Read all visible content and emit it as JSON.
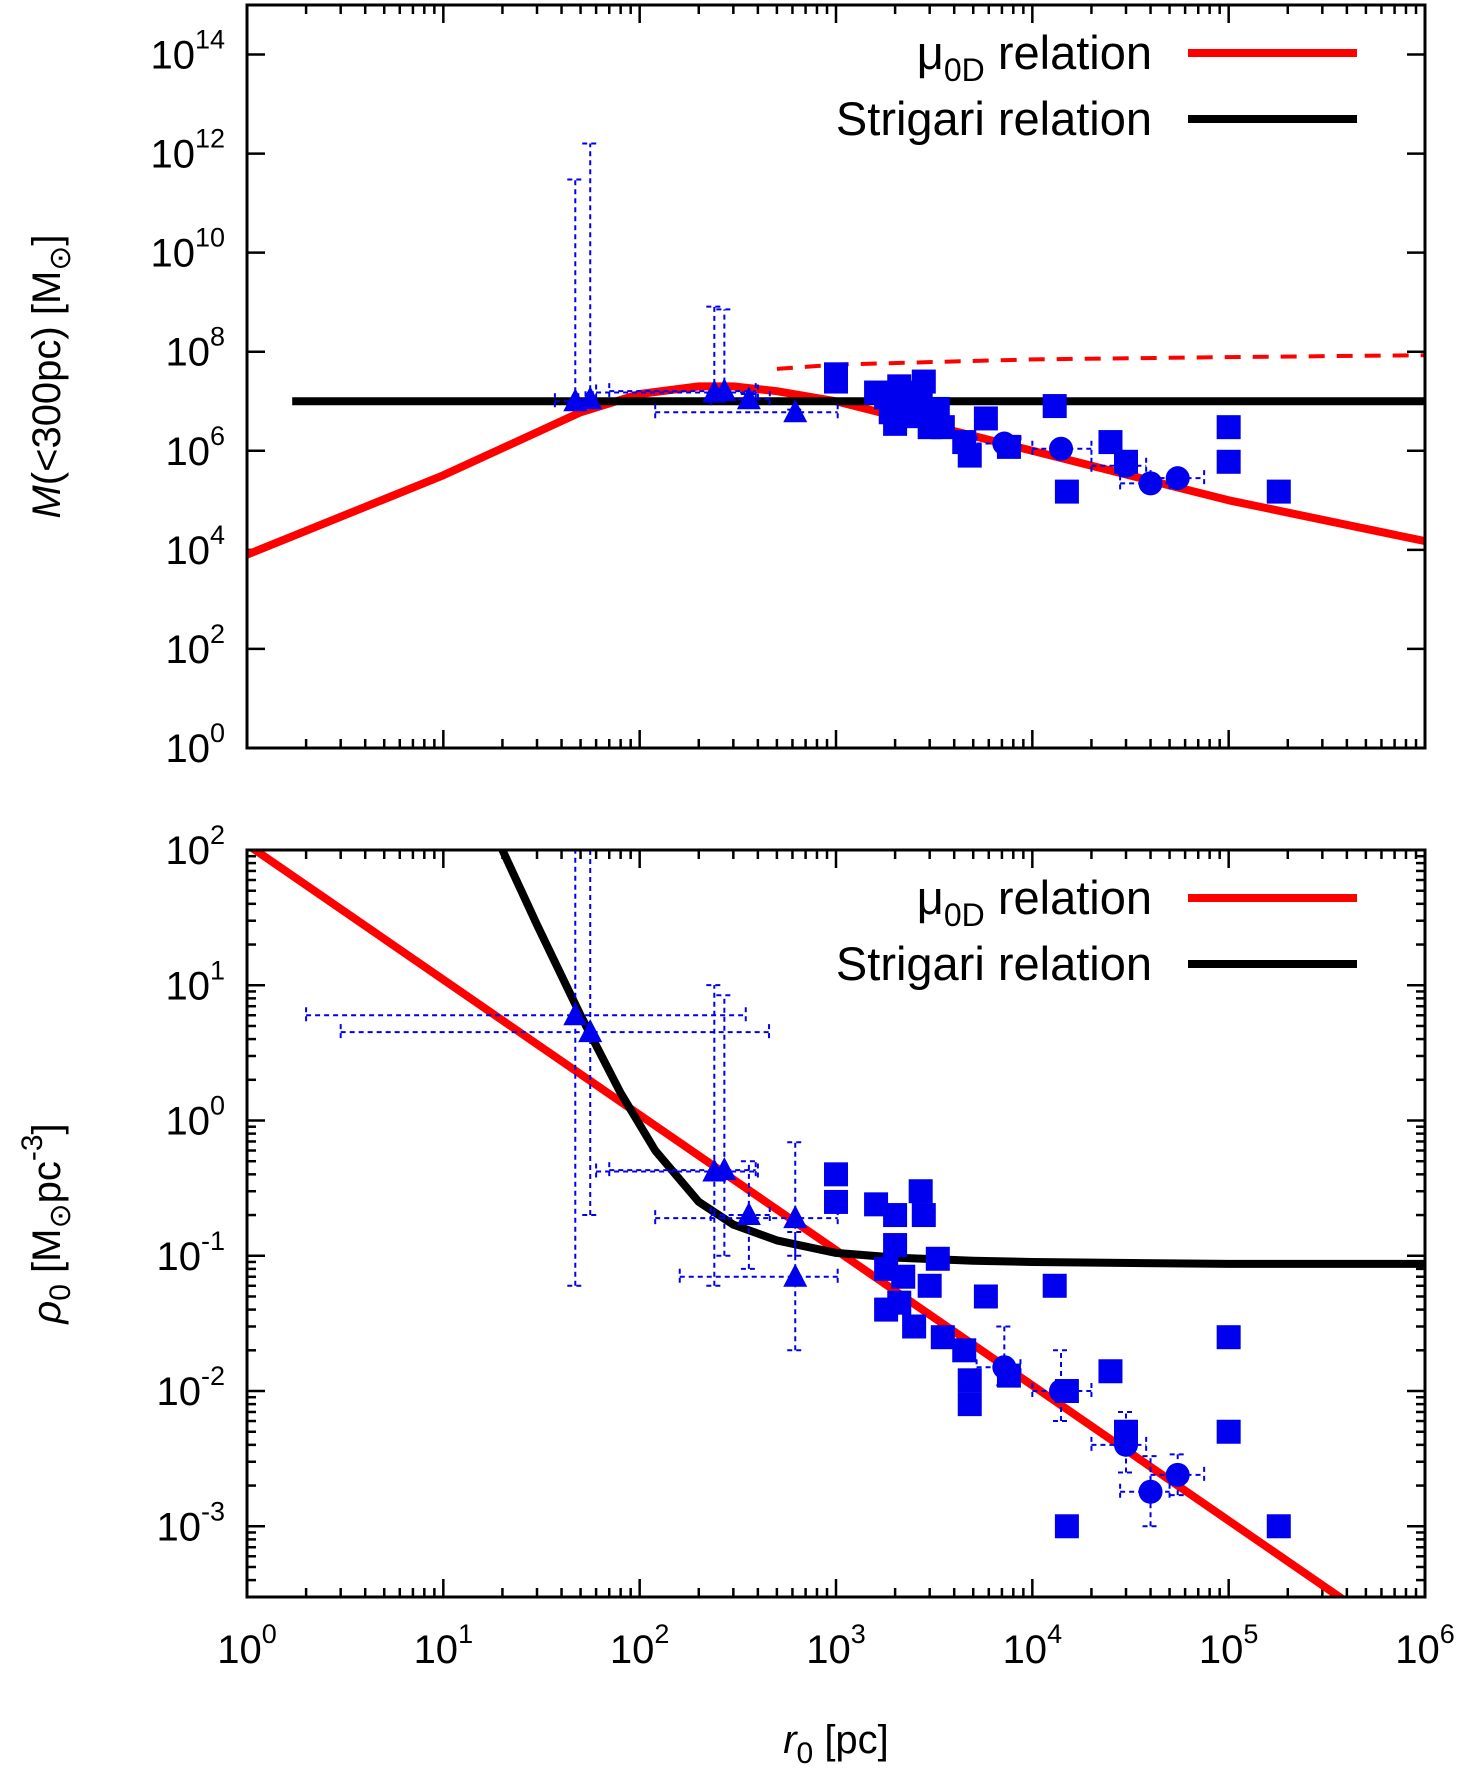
{
  "chart_data": [
    {
      "type": "scatter",
      "panel": "top",
      "ylabel": {
        "main": "M(<300pc) [M",
        "sub": "⊙",
        "close": "]"
      },
      "xscale": "log",
      "yscale": "log",
      "xlim": [
        1,
        1000000
      ],
      "ylim": [
        1,
        1000000000000000.0
      ],
      "grid": false,
      "legend": {
        "placement": "top-right",
        "entries": [
          {
            "label_main": "μ",
            "label_sub": "0D",
            "label_rest": " relation",
            "color": "#ff0000"
          },
          {
            "label_main": "Strigari relation",
            "label_sub": "",
            "label_rest": "",
            "color": "#000000"
          }
        ]
      },
      "y_ticks": [
        {
          "base": "10",
          "exp": "0",
          "value": 1
        },
        {
          "base": "10",
          "exp": "2",
          "value": 100
        },
        {
          "base": "10",
          "exp": "4",
          "value": 10000
        },
        {
          "base": "10",
          "exp": "6",
          "value": 1000000
        },
        {
          "base": "10",
          "exp": "8",
          "value": 100000000
        },
        {
          "base": "10",
          "exp": "10",
          "value": 10000000000
        },
        {
          "base": "10",
          "exp": "12",
          "value": 1000000000000
        },
        {
          "base": "10",
          "exp": "14",
          "value": 100000000000000
        }
      ],
      "series": [
        {
          "name": "μ0D relation",
          "kind": "curve",
          "color": "#ff0000",
          "x": [
            1,
            10,
            50,
            100,
            200,
            300,
            500,
            1000,
            2000,
            5000,
            10000,
            100000,
            1000000
          ],
          "y": [
            8000,
            320000,
            6000000,
            14000000,
            20000000,
            20000000,
            16000000,
            10000000,
            5000000,
            2000000,
            1000000,
            100000,
            15000
          ]
        },
        {
          "name": "μ0D relation (dashed)",
          "kind": "curve",
          "color": "#ff0000",
          "dashed": true,
          "x": [
            500,
            1000,
            10000,
            100000,
            1000000
          ],
          "y": [
            45000000,
            55000000,
            70000000,
            78000000,
            85000000
          ]
        },
        {
          "name": "Strigari relation",
          "kind": "curve",
          "color": "#000000",
          "x": [
            1.7,
            1000000
          ],
          "y": [
            10000000,
            10000000
          ]
        },
        {
          "name": "triangles",
          "kind": "points",
          "marker": "triangle",
          "color": "#0000ee",
          "x": [
            47,
            56,
            240,
            270,
            360,
            620
          ],
          "y": [
            10000000,
            11000000,
            15000000,
            16000000,
            11000000,
            6000000
          ],
          "xerr": [
            [
              10,
              1.7
            ],
            [
              3,
              1.7
            ],
            [
              180,
              160
            ],
            [
              200,
              120
            ],
            [
              130,
              100
            ],
            [
              500,
              400
            ]
          ],
          "yerr": [
            [
              100,
              300000000000.0
            ],
            [
              50,
              1600000000000.0
            ],
            [
              250000,
              800000000
            ],
            [
              300000,
              700000000
            ],
            [
              2500000,
              3000000
            ],
            [
              1500000,
              800000
            ]
          ]
        },
        {
          "name": "squares",
          "kind": "points",
          "marker": "square",
          "color": "#0000ee",
          "x": [
            1000,
            1000,
            1600,
            1800,
            1900,
            2000,
            2100,
            2200,
            2500,
            2700,
            2800,
            3000,
            3300,
            3500,
            4500,
            4800,
            5800,
            7600,
            13000,
            15000,
            25000,
            30000,
            100000,
            100000,
            180000
          ],
          "y": [
            35000000,
            25000000,
            15000000,
            12000000,
            6000000,
            3500000,
            20000000,
            8000000,
            5000000,
            15000000,
            25000000,
            3000000,
            7000000,
            3000000,
            1500000,
            800000,
            4500000,
            1200000,
            8000000,
            150000,
            1500000,
            600000,
            3000000,
            600000,
            150000
          ]
        },
        {
          "name": "circles",
          "kind": "points",
          "marker": "circle",
          "color": "#0000ee",
          "x": [
            7200,
            14000,
            30000,
            40000,
            55000
          ],
          "y": [
            1400000,
            1100000,
            500000,
            220000,
            280000
          ],
          "xerr": [
            [
              2000,
              1500
            ],
            [
              4000,
              6000
            ],
            [
              10000,
              8000
            ],
            [
              12000,
              10000
            ],
            [
              15000,
              20000
            ]
          ]
        }
      ]
    },
    {
      "type": "scatter",
      "panel": "bottom",
      "xlabel": {
        "main": "r",
        "sub": "0",
        "rest": " [pc]"
      },
      "ylabel": {
        "main": "ρ",
        "sub": "0",
        "rest": " [M",
        "sub2": "⊙",
        "mid": "pc",
        "sup": "-3",
        "close": "]"
      },
      "xscale": "log",
      "yscale": "log",
      "xlim": [
        1,
        1000000
      ],
      "ylim": [
        0.0003,
        100
      ],
      "grid": false,
      "legend": {
        "placement": "top-right",
        "entries": [
          {
            "label_main": "μ",
            "label_sub": "0D",
            "label_rest": " relation",
            "color": "#ff0000"
          },
          {
            "label_main": "Strigari relation",
            "label_sub": "",
            "label_rest": "",
            "color": "#000000"
          }
        ]
      },
      "x_ticks": [
        {
          "base": "10",
          "exp": "0",
          "value": 1
        },
        {
          "base": "10",
          "exp": "1",
          "value": 10
        },
        {
          "base": "10",
          "exp": "2",
          "value": 100
        },
        {
          "base": "10",
          "exp": "3",
          "value": 1000
        },
        {
          "base": "10",
          "exp": "4",
          "value": 10000
        },
        {
          "base": "10",
          "exp": "5",
          "value": 100000
        },
        {
          "base": "10",
          "exp": "6",
          "value": 1000000
        }
      ],
      "y_ticks": [
        {
          "base": "10",
          "exp": "-3",
          "value": 0.001
        },
        {
          "base": "10",
          "exp": "-2",
          "value": 0.01
        },
        {
          "base": "10",
          "exp": "-1",
          "value": 0.1
        },
        {
          "base": "10",
          "exp": "0",
          "value": 1
        },
        {
          "base": "10",
          "exp": "1",
          "value": 10
        },
        {
          "base": "10",
          "exp": "2",
          "value": 100
        }
      ],
      "series": [
        {
          "name": "μ0D relation",
          "kind": "curve",
          "color": "#ff0000",
          "x": [
            1,
            1000000
          ],
          "y": [
            110,
            0.00011
          ]
        },
        {
          "name": "Strigari relation",
          "kind": "curve",
          "color": "#000000",
          "x": [
            20,
            30,
            50,
            80,
            120,
            200,
            300,
            500,
            1000,
            2000,
            5000,
            10000,
            100000,
            1000000
          ],
          "y": [
            100,
            28,
            6,
            1.6,
            0.6,
            0.25,
            0.17,
            0.13,
            0.105,
            0.097,
            0.092,
            0.09,
            0.087,
            0.087
          ]
        },
        {
          "name": "triangles",
          "kind": "points",
          "marker": "triangle",
          "color": "#0000ee",
          "x": [
            47,
            56,
            240,
            270,
            360,
            620,
            620
          ],
          "y": [
            6,
            4.5,
            0.42,
            0.43,
            0.2,
            0.19,
            0.07
          ],
          "xerr": [
            [
              45,
              300
            ],
            [
              53,
              400
            ],
            [
              180,
              160
            ],
            [
              200,
              120
            ],
            [
              130,
              100
            ],
            [
              500,
              400
            ],
            [
              460,
              400
            ]
          ],
          "yerr": [
            [
              5.94,
              200
            ],
            [
              4.3,
              200
            ],
            [
              0.36,
              9.6
            ],
            [
              0.33,
              8
            ],
            [
              0.12,
              0.3
            ],
            [
              0.09,
              0.5
            ],
            [
              0.05,
              0.08
            ]
          ]
        },
        {
          "name": "squares",
          "kind": "points",
          "marker": "square",
          "color": "#0000ee",
          "x": [
            1000,
            1000,
            1600,
            1800,
            1800,
            2000,
            2000,
            2100,
            2200,
            2500,
            2700,
            2800,
            3000,
            3300,
            3500,
            4500,
            4800,
            4800,
            5800,
            7600,
            13000,
            15000,
            25000,
            30000,
            100000,
            100000,
            180000,
            15000
          ],
          "y": [
            0.4,
            0.25,
            0.24,
            0.08,
            0.04,
            0.2,
            0.12,
            0.045,
            0.07,
            0.03,
            0.3,
            0.2,
            0.06,
            0.095,
            0.025,
            0.02,
            0.012,
            0.008,
            0.05,
            0.013,
            0.06,
            0.01,
            0.014,
            0.005,
            0.025,
            0.005,
            0.001,
            0.001
          ]
        },
        {
          "name": "circles",
          "kind": "points",
          "marker": "circle",
          "color": "#0000ee",
          "x": [
            7200,
            14000,
            30000,
            40000,
            55000
          ],
          "y": [
            0.015,
            0.01,
            0.004,
            0.0018,
            0.0024
          ],
          "xerr": [
            [
              2000,
              1500
            ],
            [
              4000,
              6000
            ],
            [
              10000,
              8000
            ],
            [
              12000,
              10000
            ],
            [
              15000,
              20000
            ]
          ],
          "yerr": [
            [
              0.004,
              0.015
            ],
            [
              0.004,
              0.01
            ],
            [
              0.0015,
              0.003
            ],
            [
              0.0008,
              0.0015
            ],
            [
              0.0007,
              0.001
            ]
          ]
        }
      ]
    }
  ]
}
